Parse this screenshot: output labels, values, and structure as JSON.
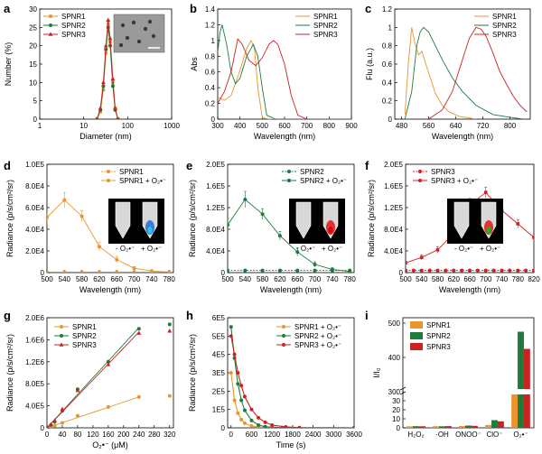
{
  "colors": {
    "SPNR1": "#e8952e",
    "SPNR2": "#1e7b3c",
    "SPNR3": "#cc2222",
    "grey": "#999999"
  },
  "chart_data": [
    {
      "panel": "a",
      "type": "line",
      "xlabel": "Diameter (nm)",
      "ylabel": "Number (%)",
      "xscale": "log",
      "xlim": [
        1,
        1000
      ],
      "ylim": [
        0,
        30
      ],
      "xticks": [
        1,
        10,
        100,
        1000
      ],
      "xticklabels": [
        "1",
        "10",
        "100",
        "1000"
      ],
      "yticks": [
        0,
        5,
        10,
        15,
        20,
        25,
        30
      ],
      "legend": [
        "SPNR1",
        "SPNR2",
        "SPNR3"
      ],
      "legend_position": "top-left",
      "inset": "TEM micrograph with scale bar",
      "series": [
        {
          "name": "SPNR1",
          "x": [
            20,
            24,
            28,
            32,
            36,
            40,
            46,
            52,
            60
          ],
          "y": [
            0,
            2,
            8,
            18,
            26,
            21,
            10,
            3,
            0
          ]
        },
        {
          "name": "SPNR2",
          "x": [
            20,
            24,
            28,
            32,
            36,
            40,
            46,
            52,
            60
          ],
          "y": [
            0,
            2.5,
            9,
            19,
            25,
            20,
            9,
            2.5,
            0
          ]
        },
        {
          "name": "SPNR3",
          "x": [
            20,
            24,
            28,
            32,
            36,
            40,
            46,
            52,
            60
          ],
          "y": [
            0,
            3,
            10,
            20,
            27,
            22,
            11,
            3,
            0
          ]
        }
      ]
    },
    {
      "panel": "b",
      "type": "line",
      "xlabel": "Wavelength (nm)",
      "ylabel": "Abs",
      "xlim": [
        300,
        900
      ],
      "ylim": [
        0,
        1.4
      ],
      "xticks": [
        300,
        400,
        500,
        600,
        700,
        800,
        900
      ],
      "yticks": [
        0.0,
        0.2,
        0.4,
        0.6,
        0.8,
        1.0,
        1.2,
        1.4
      ],
      "legend": [
        "SPNR1",
        "SPNR2",
        "SPNR3"
      ],
      "legend_position": "top-right",
      "series": [
        {
          "name": "SPNR1",
          "x": [
            300,
            330,
            360,
            400,
            430,
            450,
            465,
            480,
            500,
            530,
            600,
            700,
            900
          ],
          "y": [
            0.28,
            0.24,
            0.3,
            0.62,
            0.9,
            1.0,
            0.9,
            0.4,
            0.02,
            0.0,
            0.0,
            0.0,
            0.0
          ]
        },
        {
          "name": "SPNR2",
          "x": [
            300,
            310,
            320,
            340,
            360,
            380,
            400,
            430,
            460,
            480,
            500,
            520,
            560,
            700,
            900
          ],
          "y": [
            0.85,
            1.1,
            1.2,
            0.95,
            0.6,
            0.45,
            0.52,
            0.8,
            0.95,
            0.8,
            0.4,
            0.05,
            0.0,
            0.0,
            0.0
          ]
        },
        {
          "name": "SPNR3",
          "x": [
            300,
            330,
            360,
            390,
            410,
            440,
            470,
            500,
            530,
            550,
            570,
            600,
            630,
            660,
            700,
            900
          ],
          "y": [
            0.2,
            0.35,
            0.6,
            1.02,
            0.95,
            0.75,
            0.68,
            0.78,
            0.95,
            1.0,
            0.95,
            0.7,
            0.3,
            0.05,
            0.0,
            0.0
          ]
        }
      ]
    },
    {
      "panel": "c",
      "type": "line",
      "xlabel": "Wavelength (nm)",
      "ylabel": "Flu (a.u.)",
      "xlim": [
        460,
        860
      ],
      "ylim": [
        0,
        1.2
      ],
      "xticks": [
        480,
        560,
        640,
        720,
        800
      ],
      "yticks": [
        0.0,
        0.2,
        0.4,
        0.6,
        0.8,
        1.0,
        1.2
      ],
      "legend": [
        "SPNR1",
        "SPNR2",
        "SPNR3"
      ],
      "legend_position": "top-right",
      "series": [
        {
          "name": "SPNR1",
          "x": [
            490,
            500,
            510,
            520,
            530,
            540,
            550,
            565,
            580,
            600,
            620,
            650,
            700
          ],
          "y": [
            0.05,
            0.6,
            1.0,
            0.82,
            0.7,
            0.74,
            0.62,
            0.45,
            0.28,
            0.15,
            0.08,
            0.03,
            0.0
          ]
        },
        {
          "name": "SPNR2",
          "x": [
            490,
            510,
            525,
            535,
            545,
            560,
            580,
            600,
            630,
            660,
            700,
            750,
            800,
            840
          ],
          "y": [
            0.0,
            0.3,
            0.8,
            0.95,
            1.0,
            0.95,
            0.8,
            0.65,
            0.45,
            0.3,
            0.15,
            0.05,
            0.02,
            0.0
          ]
        },
        {
          "name": "SPNR3",
          "x": [
            560,
            600,
            630,
            660,
            680,
            700,
            715,
            730,
            750,
            770,
            790,
            810,
            830,
            850
          ],
          "y": [
            0.0,
            0.1,
            0.3,
            0.65,
            0.88,
            1.0,
            0.98,
            0.9,
            0.72,
            0.52,
            0.38,
            0.25,
            0.15,
            0.08
          ]
        }
      ]
    },
    {
      "panel": "d",
      "type": "line",
      "xlabel": "Wavelength (nm)",
      "ylabel": "Radiance (p/s/cm²/sr)",
      "xlim": [
        500,
        790
      ],
      "ylim": [
        0,
        100000
      ],
      "xticks": [
        500,
        540,
        580,
        620,
        660,
        700,
        740,
        780
      ],
      "yticks": [
        0,
        20000,
        40000,
        60000,
        80000,
        100000
      ],
      "yticklabels": [
        "0",
        "2.0E4",
        "4.0E4",
        "6.0E4",
        "8.0E4",
        "1.0E5"
      ],
      "legend": [
        "SPNR1",
        "SPNR1 + O₂•⁻"
      ],
      "legend_position": "top-right",
      "inset_labels": [
        "- O₂•⁻",
        "+ O₂•⁻"
      ],
      "series": [
        {
          "name": "SPNR1",
          "style": "dashed",
          "x": [
            500,
            540,
            580,
            620,
            660,
            700,
            740,
            780
          ],
          "y": [
            500,
            500,
            500,
            500,
            500,
            500,
            500,
            500
          ]
        },
        {
          "name": "SPNR1 + O₂•⁻",
          "x": [
            500,
            540,
            580,
            620,
            660,
            700,
            740,
            780
          ],
          "y": [
            51000,
            67000,
            52000,
            24000,
            12000,
            4000,
            1500,
            500
          ],
          "err": [
            6000,
            7000,
            5000,
            4000,
            3000,
            1500,
            800,
            300
          ]
        }
      ]
    },
    {
      "panel": "e",
      "type": "line",
      "xlabel": "Wavelength (nm)",
      "ylabel": "Radiance (p/s/cm²/sr)",
      "xlim": [
        500,
        790
      ],
      "ylim": [
        0,
        200000
      ],
      "xticks": [
        500,
        540,
        580,
        620,
        660,
        700,
        740,
        780
      ],
      "yticks": [
        0,
        40000,
        80000,
        120000,
        160000,
        200000
      ],
      "yticklabels": [
        "0",
        "4.0E4",
        "8.0E4",
        "1.2E5",
        "1.6E5",
        "2.0E5"
      ],
      "legend": [
        "SPNR2",
        "SPNR2 + O₂•⁻"
      ],
      "legend_position": "top-right",
      "inset_labels": [
        "- O₂•⁻",
        "+ O₂•⁻"
      ],
      "series": [
        {
          "name": "SPNR2",
          "style": "dashed",
          "x": [
            500,
            540,
            580,
            620,
            660,
            700,
            740,
            780
          ],
          "y": [
            4000,
            4000,
            4000,
            4000,
            4000,
            4000,
            4000,
            4000
          ]
        },
        {
          "name": "SPNR2 + O₂•⁻",
          "x": [
            500,
            540,
            580,
            620,
            660,
            700,
            740,
            780
          ],
          "y": [
            88000,
            135000,
            108000,
            68000,
            38000,
            15000,
            6000,
            2000
          ],
          "err": [
            12000,
            15000,
            10000,
            8000,
            8000,
            5000,
            3000,
            1000
          ]
        }
      ]
    },
    {
      "panel": "f",
      "type": "line",
      "xlabel": "Wavelength (nm)",
      "ylabel": "Radiance (p/s/cm²/sr)",
      "xlim": [
        500,
        820
      ],
      "ylim": [
        0,
        200000
      ],
      "xticks": [
        500,
        540,
        580,
        620,
        660,
        700,
        740,
        780,
        820
      ],
      "yticks": [
        0,
        40000,
        80000,
        120000,
        160000,
        200000
      ],
      "yticklabels": [
        "0",
        "4.0E4",
        "8.0E4",
        "1.2E5",
        "1.6E5",
        "2.0E5"
      ],
      "legend": [
        "SPNR3",
        "SPNR3 + O₂•⁻"
      ],
      "legend_position": "top-left",
      "inset_labels": [
        "- O₂•⁻",
        "+ O₂•⁻"
      ],
      "series": [
        {
          "name": "SPNR3",
          "style": "dashed",
          "x": [
            500,
            520,
            540,
            560,
            580,
            600,
            620,
            640,
            660,
            680,
            700,
            720,
            740,
            760,
            780,
            800,
            820
          ],
          "y": [
            4000,
            4000,
            4000,
            4000,
            4000,
            4000,
            4000,
            4000,
            4000,
            4000,
            4000,
            4000,
            4000,
            4000,
            4000,
            4000,
            4000
          ]
        },
        {
          "name": "SPNR3 + O₂•⁻",
          "x": [
            500,
            540,
            580,
            620,
            660,
            700,
            740,
            780,
            820
          ],
          "y": [
            18000,
            28000,
            42000,
            72000,
            125000,
            148000,
            115000,
            90000,
            65000
          ],
          "err": [
            3000,
            5000,
            6000,
            10000,
            12000,
            10000,
            10000,
            8000,
            6000
          ]
        }
      ]
    },
    {
      "panel": "g",
      "type": "scatter",
      "xlabel": "O₂•⁻ (μM)",
      "ylabel": "Radiance (p/s/cm²/sr)",
      "xlim": [
        0,
        330
      ],
      "ylim": [
        0,
        2000000
      ],
      "xticks": [
        0,
        40,
        80,
        120,
        160,
        200,
        240,
        280,
        320
      ],
      "yticks": [
        0,
        400000,
        800000,
        1200000,
        1600000,
        2000000
      ],
      "yticklabels": [
        "0",
        "4.0E5",
        "8.0E5",
        "1.2E6",
        "1.6E6",
        "2.0E6"
      ],
      "legend": [
        "SPNR1",
        "SPNR2",
        "SPNR3"
      ],
      "legend_position": "top-left",
      "series": [
        {
          "name": "SPNR1",
          "x": [
            0,
            10,
            20,
            40,
            80,
            160,
            240,
            320
          ],
          "y": [
            5000,
            20000,
            40000,
            90000,
            220000,
            380000,
            560000,
            580000
          ],
          "fit": [
            [
              0,
              0
            ],
            [
              240,
              560000
            ]
          ]
        },
        {
          "name": "SPNR2",
          "x": [
            0,
            10,
            20,
            40,
            80,
            160,
            240,
            320
          ],
          "y": [
            10000,
            50000,
            110000,
            310000,
            700000,
            1200000,
            1800000,
            1880000
          ],
          "fit": [
            [
              0,
              0
            ],
            [
              240,
              1820000
            ]
          ]
        },
        {
          "name": "SPNR3",
          "x": [
            0,
            10,
            20,
            40,
            80,
            160,
            240,
            320
          ],
          "y": [
            10000,
            60000,
            130000,
            340000,
            680000,
            1150000,
            1720000,
            1760000
          ],
          "fit": [
            [
              0,
              0
            ],
            [
              240,
              1740000
            ]
          ]
        }
      ]
    },
    {
      "panel": "h",
      "type": "line",
      "xlabel": "Time (s)",
      "ylabel": "Radiance (p/s/cm²/sr)",
      "xlim": [
        -100,
        3600
      ],
      "ylim": [
        0,
        600000
      ],
      "xticks": [
        0,
        600,
        1200,
        1800,
        2400,
        3000,
        3600
      ],
      "yticks": [
        0,
        100000,
        200000,
        300000,
        400000,
        500000,
        600000
      ],
      "yticklabels": [
        "0",
        "1E5",
        "2E5",
        "3E5",
        "4E5",
        "5E5",
        "6E5"
      ],
      "legend": [
        "SPNR1 + O₂•⁻",
        "SPNR2 + O₂•⁻",
        "SPNR3 + O₂•⁻"
      ],
      "legend_position": "top-right",
      "series": [
        {
          "name": "SPNR1 + O₂•⁻",
          "x": [
            0,
            100,
            200,
            300,
            400,
            600,
            800,
            1000,
            1500,
            3600
          ],
          "y": [
            300000,
            150000,
            80000,
            45000,
            25000,
            10000,
            4000,
            1000,
            0,
            0
          ]
        },
        {
          "name": "SPNR2 + O₂•⁻",
          "x": [
            0,
            100,
            200,
            300,
            400,
            600,
            800,
            1000,
            1500,
            3600
          ],
          "y": [
            550000,
            380000,
            240000,
            150000,
            95000,
            40000,
            15000,
            6000,
            1000,
            0
          ]
        },
        {
          "name": "SPNR3 + O₂•⁻",
          "x": [
            0,
            100,
            200,
            300,
            400,
            600,
            800,
            1000,
            1200,
            1600,
            2000,
            3600
          ],
          "y": [
            500000,
            400000,
            300000,
            230000,
            170000,
            100000,
            55000,
            30000,
            15000,
            5000,
            1000,
            0
          ]
        }
      ]
    },
    {
      "panel": "i",
      "type": "bar",
      "ylabel": "I/I₀",
      "yaxis": "broken",
      "categories": [
        "H₂O₂",
        "·OH",
        "ONOO⁻",
        "ClO⁻",
        "O₂•⁻"
      ],
      "yticks": [
        0,
        10,
        20,
        30,
        300,
        400,
        500
      ],
      "legend": [
        "SPNR1",
        "SPNR2",
        "SPNR3"
      ],
      "legend_position": "top-left",
      "series": [
        {
          "name": "SPNR1",
          "values": [
            1.7,
            1.8,
            2.0,
            3.1,
            305
          ]
        },
        {
          "name": "SPNR2",
          "values": [
            1.8,
            1.7,
            2.5,
            8.5,
            475
          ]
        },
        {
          "name": "SPNR3",
          "values": [
            1.7,
            1.9,
            2.2,
            7.2,
            425
          ]
        }
      ]
    }
  ]
}
